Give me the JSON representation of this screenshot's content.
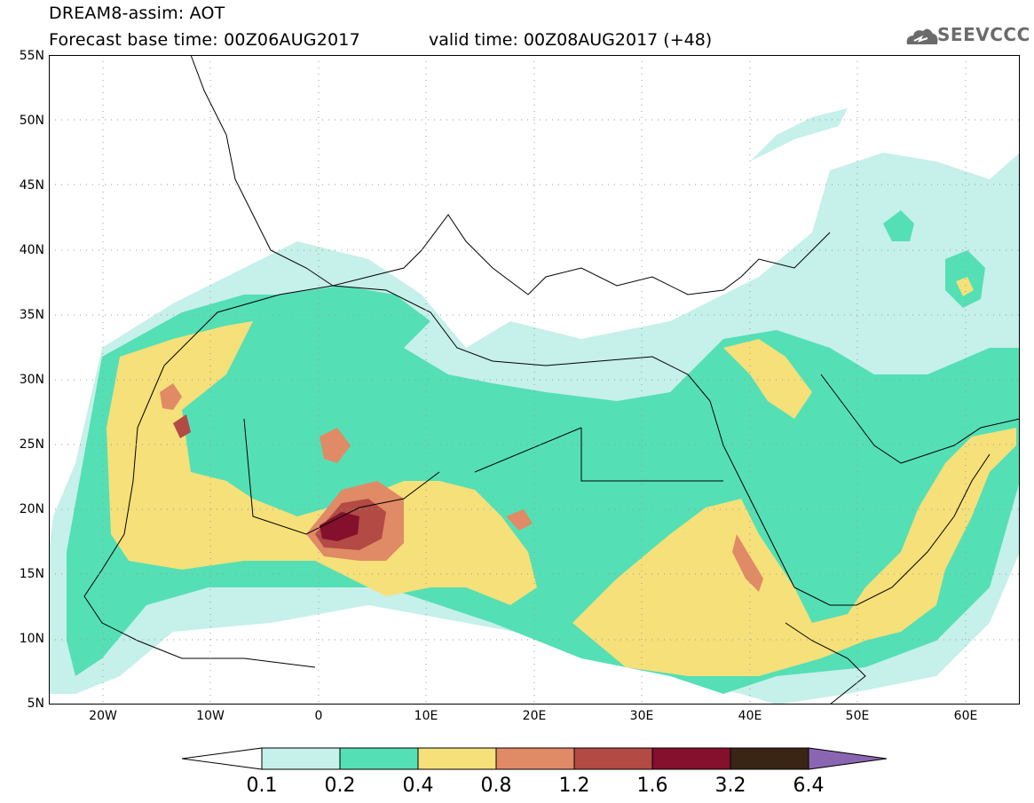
{
  "header": {
    "title": "DREAM8-assim: AOT",
    "base_time": "Forecast base time: 00Z06AUG2017",
    "valid_time": "valid time: 00Z08AUG2017 (+48)",
    "logo_text": "SEEVCCC"
  },
  "map": {
    "lat_labels": [
      "55N",
      "50N",
      "45N",
      "40N",
      "35N",
      "30N",
      "25N",
      "20N",
      "15N",
      "10N",
      "5N"
    ],
    "lon_labels": [
      "20W",
      "10W",
      "0",
      "10E",
      "20E",
      "30E",
      "40E",
      "50E",
      "60E"
    ],
    "lat_range": [
      5,
      55
    ],
    "lon_range": [
      -25,
      65
    ]
  },
  "legend": {
    "levels": [
      "0.1",
      "0.2",
      "0.4",
      "0.8",
      "1.2",
      "1.6",
      "3.2",
      "6.4"
    ],
    "colors": [
      "#ffffff",
      "#c6f0ea",
      "#55dfb5",
      "#f5e07a",
      "#e08a66",
      "#b34a44",
      "#84102e",
      "#3a2414",
      "#8a66b2"
    ]
  }
}
